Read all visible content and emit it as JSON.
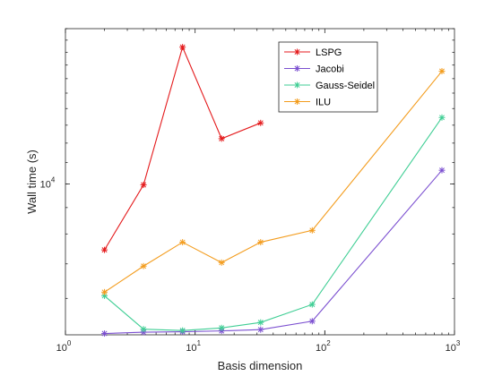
{
  "chart_data": {
    "type": "line",
    "xlabel": "Basis dimension",
    "ylabel": "Wall time (s)",
    "xscale": "log",
    "yscale": "log",
    "xlim": [
      1,
      1000
    ],
    "ylim": [
      5100,
      20000
    ],
    "x_ticks": [
      {
        "value": 1,
        "base": "10",
        "exp": "0"
      },
      {
        "value": 10,
        "base": "10",
        "exp": "1"
      },
      {
        "value": 100,
        "base": "10",
        "exp": "2"
      },
      {
        "value": 1000,
        "base": "10",
        "exp": "3"
      }
    ],
    "y_ticks": [
      {
        "value": 10000,
        "base": "10",
        "exp": "4"
      }
    ],
    "legend_position": "top-right",
    "series": [
      {
        "name": "LSPG",
        "color": "#e41a1c",
        "x": [
          2,
          4,
          8,
          16,
          32
        ],
        "y": [
          7450,
          9960,
          18420,
          12240,
          13130
        ]
      },
      {
        "name": "Jacobi",
        "color": "#7b4fd0",
        "x": [
          2,
          4,
          8,
          16,
          32,
          80,
          800
        ],
        "y": [
          5130,
          5160,
          5170,
          5190,
          5220,
          5420,
          10630
        ]
      },
      {
        "name": "Gauss-Seidel",
        "color": "#3fce94",
        "x": [
          2,
          4,
          8,
          16,
          32,
          80,
          800
        ],
        "y": [
          6070,
          5230,
          5200,
          5260,
          5390,
          5840,
          13450
        ]
      },
      {
        "name": "ILU",
        "color": "#f39c1d",
        "x": [
          2,
          4,
          8,
          16,
          32,
          80,
          800
        ],
        "y": [
          6170,
          6930,
          7710,
          7040,
          7710,
          8130,
          16540
        ]
      }
    ]
  }
}
